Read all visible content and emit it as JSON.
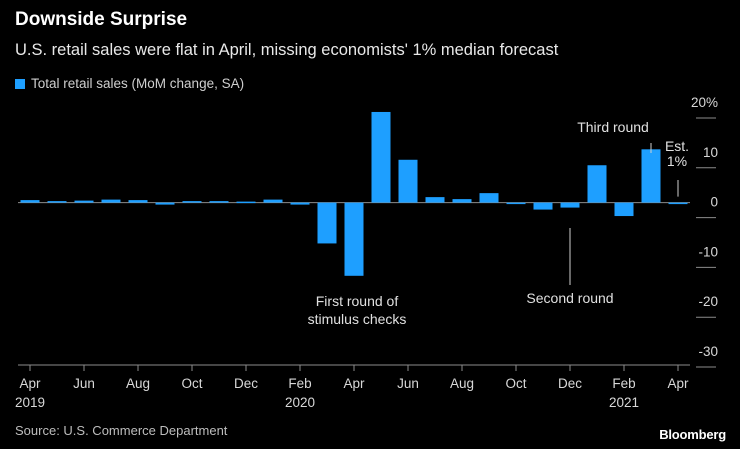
{
  "header": {
    "title": "Downside Surprise",
    "subtitle": "U.S. retail sales were flat in April, missing economists' 1% median forecast"
  },
  "footer": {
    "source": "Source: U.S. Commerce Department",
    "brand": "Bloomberg"
  },
  "colors": {
    "bar": "#1e9fff",
    "background": "#000000",
    "axis": "#8c8c8c"
  },
  "chart_data": {
    "type": "bar",
    "title": "Downside Surprise",
    "subtitle": "U.S. retail sales were flat in April, missing economists' 1% median forecast",
    "series": [
      {
        "name": "Total retail sales (MoM change, SA)",
        "categories": [
          "2019-04",
          "2019-05",
          "2019-06",
          "2019-07",
          "2019-08",
          "2019-09",
          "2019-10",
          "2019-11",
          "2019-12",
          "2020-01",
          "2020-02",
          "2020-03",
          "2020-04",
          "2020-05",
          "2020-06",
          "2020-07",
          "2020-08",
          "2020-09",
          "2020-10",
          "2020-11",
          "2020-12",
          "2021-01",
          "2021-02",
          "2021-03",
          "2021-04"
        ],
        "values": [
          0.5,
          0.3,
          0.4,
          0.6,
          0.5,
          -0.4,
          0.3,
          0.3,
          0.2,
          0.6,
          -0.4,
          -8.2,
          -14.7,
          18.2,
          8.6,
          1.1,
          0.7,
          1.9,
          -0.1,
          -1.4,
          -1.0,
          7.5,
          -2.7,
          10.7,
          0.0
        ]
      }
    ],
    "x_tick_labels": [
      {
        "month": "Apr",
        "year": "2019"
      },
      {
        "month": "Jun",
        "year": ""
      },
      {
        "month": "Aug",
        "year": ""
      },
      {
        "month": "Oct",
        "year": ""
      },
      {
        "month": "Dec",
        "year": ""
      },
      {
        "month": "Feb",
        "year": "2020"
      },
      {
        "month": "Apr",
        "year": ""
      },
      {
        "month": "Jun",
        "year": ""
      },
      {
        "month": "Aug",
        "year": ""
      },
      {
        "month": "Oct",
        "year": ""
      },
      {
        "month": "Dec",
        "year": ""
      },
      {
        "month": "Feb",
        "year": "2021"
      },
      {
        "month": "Apr",
        "year": ""
      }
    ],
    "y_ticks": [
      {
        "value": 20,
        "label": "20%"
      },
      {
        "value": 10,
        "label": "10"
      },
      {
        "value": 0,
        "label": "0"
      },
      {
        "value": -10,
        "label": "-10"
      },
      {
        "value": -20,
        "label": "-20"
      },
      {
        "value": -30,
        "label": "-30"
      }
    ],
    "ylim": [
      -30,
      20
    ],
    "estimate": {
      "value": 1,
      "label_lines": [
        "Est.",
        "1%"
      ],
      "category": "2021-04"
    },
    "annotations": [
      {
        "id": "first-round",
        "lines": [
          "First round of",
          "stimulus checks"
        ],
        "category": "2020-04"
      },
      {
        "id": "second-round",
        "lines": [
          "Second round"
        ],
        "category": "2020-12"
      },
      {
        "id": "third-round",
        "lines": [
          "Third round"
        ],
        "category": "2021-03"
      }
    ],
    "legend_position": "top-left",
    "y_axis_position": "right",
    "grid": false
  }
}
